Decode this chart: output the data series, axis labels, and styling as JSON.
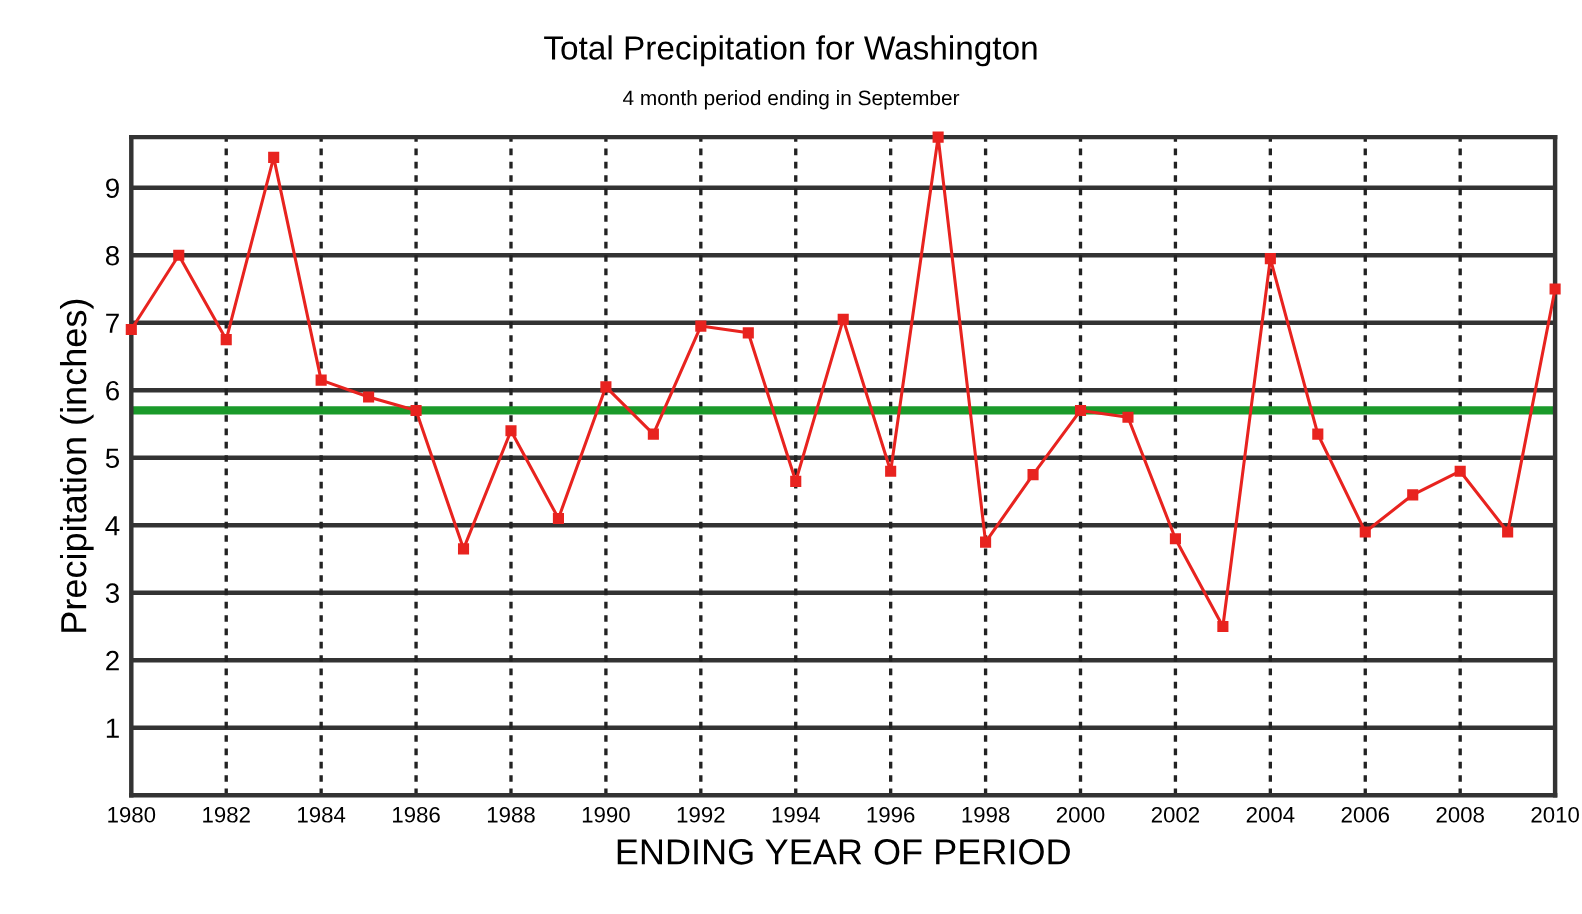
{
  "chart_data": {
    "type": "line",
    "title": "Total Precipitation for Washington",
    "subtitle": "4 month period ending in September",
    "xlabel": "ENDING YEAR OF PERIOD",
    "ylabel": "Precipitation (inches)",
    "x": [
      1980,
      1981,
      1982,
      1983,
      1984,
      1985,
      1986,
      1987,
      1988,
      1989,
      1990,
      1991,
      1992,
      1993,
      1994,
      1995,
      1996,
      1997,
      1998,
      1999,
      2000,
      2001,
      2002,
      2003,
      2004,
      2005,
      2006,
      2007,
      2008,
      2009,
      2010
    ],
    "series": [
      {
        "color": "#e8231f",
        "values": [
          6.9,
          8.0,
          6.75,
          9.45,
          6.15,
          5.9,
          5.7,
          3.65,
          5.4,
          4.1,
          6.05,
          5.35,
          6.95,
          6.85,
          4.65,
          7.05,
          4.8,
          9.75,
          3.75,
          4.75,
          5.7,
          5.6,
          3.8,
          2.5,
          7.95,
          5.35,
          3.9,
          4.45,
          4.8,
          3.9,
          7.5
        ]
      }
    ],
    "xlim": [
      1980,
      2010
    ],
    "xticks": [
      1980,
      1982,
      1984,
      1986,
      1988,
      1990,
      1992,
      1994,
      1996,
      1998,
      2000,
      2002,
      2004,
      2006,
      2008,
      2010
    ],
    "ylim": [
      0,
      9.75
    ],
    "yticks": [
      1,
      2,
      3,
      4,
      5,
      6,
      7,
      8,
      9
    ],
    "ref_lines": [
      {
        "axis": "y",
        "value": 5.7,
        "color": "#1a9a2a"
      }
    ],
    "grid": true,
    "marker": "square",
    "line_style": "solid",
    "legend": false
  }
}
